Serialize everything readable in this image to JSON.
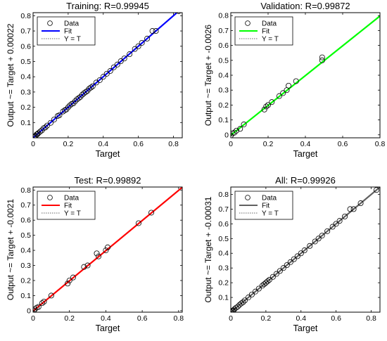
{
  "chart_data": [
    {
      "type": "scatter",
      "title": "Training: R=0.99945",
      "xlabel": "Target",
      "ylabel": "Output ~= Target + 0.00022",
      "xlim": [
        0,
        0.85
      ],
      "ylim": [
        0,
        0.82
      ],
      "xticks": [
        0,
        0.2,
        0.4,
        0.6,
        0.8
      ],
      "xtick_labels": [
        "0",
        "0.2",
        "0.4",
        "0.6",
        "0.8"
      ],
      "yticks": [
        0.1,
        0.2,
        0.3,
        0.4,
        0.5,
        0.6,
        0.7,
        0.8
      ],
      "ytick_labels": [
        "0.1",
        "0.2",
        "0.3",
        "0.4",
        "0.5",
        "0.6",
        "0.7",
        "0.8"
      ],
      "fit_color": "#0000ff",
      "fit": {
        "slope": 1.0,
        "intercept": 0.00022
      },
      "legend": {
        "placement": "top-left",
        "entries": [
          "Data",
          "Fit",
          "Y = T"
        ]
      },
      "points": [
        [
          0.005,
          0.006
        ],
        [
          0.01,
          0.01
        ],
        [
          0.015,
          0.013
        ],
        [
          0.02,
          0.022
        ],
        [
          0.025,
          0.024
        ],
        [
          0.03,
          0.031
        ],
        [
          0.04,
          0.04
        ],
        [
          0.05,
          0.049
        ],
        [
          0.06,
          0.063
        ],
        [
          0.07,
          0.068
        ],
        [
          0.08,
          0.08
        ],
        [
          0.1,
          0.098
        ],
        [
          0.12,
          0.12
        ],
        [
          0.14,
          0.143
        ],
        [
          0.15,
          0.148
        ],
        [
          0.17,
          0.172
        ],
        [
          0.18,
          0.18
        ],
        [
          0.19,
          0.186
        ],
        [
          0.2,
          0.2
        ],
        [
          0.21,
          0.212
        ],
        [
          0.22,
          0.222
        ],
        [
          0.23,
          0.226
        ],
        [
          0.24,
          0.24
        ],
        [
          0.25,
          0.252
        ],
        [
          0.26,
          0.26
        ],
        [
          0.27,
          0.268
        ],
        [
          0.28,
          0.282
        ],
        [
          0.29,
          0.292
        ],
        [
          0.3,
          0.3
        ],
        [
          0.31,
          0.308
        ],
        [
          0.32,
          0.322
        ],
        [
          0.33,
          0.33
        ],
        [
          0.34,
          0.338
        ],
        [
          0.36,
          0.362
        ],
        [
          0.38,
          0.378
        ],
        [
          0.4,
          0.4
        ],
        [
          0.42,
          0.42
        ],
        [
          0.44,
          0.438
        ],
        [
          0.46,
          0.462
        ],
        [
          0.48,
          0.48
        ],
        [
          0.5,
          0.502
        ],
        [
          0.52,
          0.52
        ],
        [
          0.55,
          0.548
        ],
        [
          0.58,
          0.582
        ],
        [
          0.6,
          0.6
        ],
        [
          0.62,
          0.622
        ],
        [
          0.65,
          0.65
        ],
        [
          0.68,
          0.7
        ],
        [
          0.7,
          0.7
        ],
        [
          0.83,
          0.83
        ]
      ]
    },
    {
      "type": "scatter",
      "title": "Validation: R=0.99872",
      "xlabel": "Target",
      "ylabel": "Output ~= Target + -0.0026",
      "xlim": [
        0,
        0.8
      ],
      "ylim": [
        -0.02,
        0.82
      ],
      "xticks": [
        0,
        0.2,
        0.4,
        0.6,
        0.8
      ],
      "xtick_labels": [
        "0",
        "0.2",
        "0.4",
        "0.6",
        "0.8"
      ],
      "yticks": [
        0,
        0.1,
        0.2,
        0.3,
        0.4,
        0.5,
        0.6,
        0.7,
        0.8
      ],
      "ytick_labels": [
        "0",
        "0.1",
        "0.2",
        "0.3",
        "0.4",
        "0.5",
        "0.6",
        "0.7",
        "0.8"
      ],
      "fit_color": "#00ff00",
      "fit": {
        "slope": 1.0,
        "intercept": -0.0026
      },
      "legend": {
        "placement": "top-left",
        "entries": [
          "Data",
          "Fit",
          "Y = T"
        ]
      },
      "points": [
        [
          0.0,
          -0.005
        ],
        [
          0.01,
          0.01
        ],
        [
          0.02,
          0.015
        ],
        [
          0.03,
          0.028
        ],
        [
          0.05,
          0.04
        ],
        [
          0.07,
          0.07
        ],
        [
          0.18,
          0.17
        ],
        [
          0.19,
          0.19
        ],
        [
          0.2,
          0.2
        ],
        [
          0.22,
          0.22
        ],
        [
          0.26,
          0.26
        ],
        [
          0.28,
          0.28
        ],
        [
          0.3,
          0.3
        ],
        [
          0.31,
          0.33
        ],
        [
          0.35,
          0.36
        ],
        [
          0.49,
          0.5
        ],
        [
          0.49,
          0.52
        ]
      ]
    },
    {
      "type": "scatter",
      "title": "Test: R=0.99892",
      "xlabel": "Target",
      "ylabel": "Output ~= Target + -0.0021",
      "xlim": [
        0,
        0.82
      ],
      "ylim": [
        -0.01,
        0.82
      ],
      "xticks": [
        0,
        0.2,
        0.4,
        0.6,
        0.8
      ],
      "xtick_labels": [
        "0",
        "0.2",
        "0.4",
        "0.6",
        "0.8"
      ],
      "yticks": [
        0,
        0.1,
        0.2,
        0.3,
        0.4,
        0.5,
        0.6,
        0.7,
        0.8
      ],
      "ytick_labels": [
        "0",
        "0.1",
        "0.2",
        "0.3",
        "0.4",
        "0.5",
        "0.6",
        "0.7",
        "0.8"
      ],
      "fit_color": "#ff0000",
      "fit": {
        "slope": 1.0,
        "intercept": -0.0021
      },
      "legend": {
        "placement": "top-left",
        "entries": [
          "Data",
          "Fit",
          "Y = T"
        ]
      },
      "points": [
        [
          0.005,
          0.0
        ],
        [
          0.01,
          0.01
        ],
        [
          0.02,
          0.02
        ],
        [
          0.03,
          0.025
        ],
        [
          0.05,
          0.05
        ],
        [
          0.06,
          0.06
        ],
        [
          0.1,
          0.1
        ],
        [
          0.19,
          0.18
        ],
        [
          0.2,
          0.2
        ],
        [
          0.22,
          0.22
        ],
        [
          0.28,
          0.29
        ],
        [
          0.3,
          0.3
        ],
        [
          0.35,
          0.38
        ],
        [
          0.36,
          0.36
        ],
        [
          0.4,
          0.4
        ],
        [
          0.41,
          0.42
        ],
        [
          0.58,
          0.58
        ],
        [
          0.65,
          0.65
        ]
      ]
    },
    {
      "type": "scatter",
      "title": "All: R=0.99926",
      "xlabel": "Target",
      "ylabel": "Output ~= Target + -0.00031",
      "xlim": [
        0,
        0.85
      ],
      "ylim": [
        0,
        0.85
      ],
      "xticks": [
        0,
        0.2,
        0.4,
        0.6,
        0.8
      ],
      "xtick_labels": [
        "0",
        "0.2",
        "0.4",
        "0.6",
        "0.8"
      ],
      "yticks": [
        0.1,
        0.2,
        0.3,
        0.4,
        0.5,
        0.6,
        0.7,
        0.8
      ],
      "ytick_labels": [
        "0.1",
        "0.2",
        "0.3",
        "0.4",
        "0.5",
        "0.6",
        "0.7",
        "0.8"
      ],
      "fit_color": "#606060",
      "fit": {
        "slope": 1.0,
        "intercept": -0.00031
      },
      "legend": {
        "placement": "top-left",
        "entries": [
          "Data",
          "Fit",
          "Y = T"
        ]
      },
      "points": [
        [
          0.0,
          0.0
        ],
        [
          0.005,
          0.006
        ],
        [
          0.01,
          0.01
        ],
        [
          0.015,
          0.012
        ],
        [
          0.02,
          0.02
        ],
        [
          0.03,
          0.03
        ],
        [
          0.04,
          0.038
        ],
        [
          0.05,
          0.05
        ],
        [
          0.06,
          0.06
        ],
        [
          0.07,
          0.068
        ],
        [
          0.08,
          0.08
        ],
        [
          0.1,
          0.1
        ],
        [
          0.12,
          0.12
        ],
        [
          0.14,
          0.14
        ],
        [
          0.16,
          0.16
        ],
        [
          0.18,
          0.18
        ],
        [
          0.19,
          0.19
        ],
        [
          0.2,
          0.2
        ],
        [
          0.21,
          0.21
        ],
        [
          0.22,
          0.22
        ],
        [
          0.24,
          0.24
        ],
        [
          0.26,
          0.26
        ],
        [
          0.28,
          0.28
        ],
        [
          0.3,
          0.3
        ],
        [
          0.32,
          0.32
        ],
        [
          0.34,
          0.34
        ],
        [
          0.36,
          0.36
        ],
        [
          0.38,
          0.38
        ],
        [
          0.4,
          0.4
        ],
        [
          0.42,
          0.42
        ],
        [
          0.45,
          0.45
        ],
        [
          0.48,
          0.48
        ],
        [
          0.5,
          0.5
        ],
        [
          0.52,
          0.52
        ],
        [
          0.55,
          0.55
        ],
        [
          0.58,
          0.58
        ],
        [
          0.6,
          0.6
        ],
        [
          0.62,
          0.62
        ],
        [
          0.65,
          0.65
        ],
        [
          0.68,
          0.7
        ],
        [
          0.7,
          0.7
        ],
        [
          0.74,
          0.74
        ],
        [
          0.83,
          0.83
        ]
      ]
    }
  ]
}
